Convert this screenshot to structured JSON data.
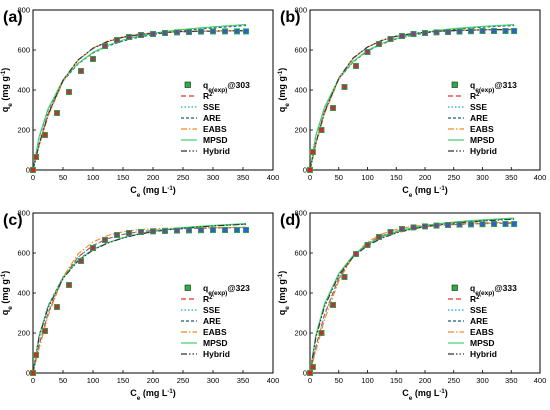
{
  "chart_data": [
    {
      "type": "scatter",
      "panel_label": "(a)",
      "xlim": [
        0,
        400
      ],
      "ylim": [
        0,
        800
      ],
      "xticks": [
        0,
        50,
        100,
        150,
        200,
        250,
        300,
        350,
        400
      ],
      "yticks": [
        0,
        200,
        400,
        600,
        800
      ],
      "xlabel": {
        "main": "C",
        "sub": "e",
        "rest": " (mg L",
        "sup": "-1",
        "end": ")"
      },
      "ylabel": {
        "main": "q",
        "sub": "e",
        "rest": " (mg g",
        "sup": "-1",
        "end": ")"
      },
      "legend_placement": "bottom-right",
      "legend": [
        {
          "main": "q",
          "sub": "e(exp)",
          "rest": "@303"
        },
        {
          "main": "R",
          "sup": "2"
        },
        {
          "main": "SSE"
        },
        {
          "main": "ARE"
        },
        {
          "main": "EABS"
        },
        {
          "main": "MPSD"
        },
        {
          "main": "Hybrid"
        }
      ],
      "experimental": {
        "x": [
          0,
          5,
          20,
          40,
          60,
          80,
          100,
          120,
          140,
          160,
          180,
          200,
          220,
          240,
          260,
          280,
          300,
          320,
          340,
          355
        ],
        "y": [
          0,
          65,
          175,
          285,
          390,
          495,
          555,
          620,
          650,
          665,
          675,
          680,
          685,
          688,
          690,
          692,
          693,
          693,
          693,
          693
        ]
      },
      "fits": {
        "x": [
          0,
          10,
          25,
          50,
          75,
          100,
          125,
          150,
          175,
          200,
          225,
          250,
          275,
          300,
          325,
          355
        ],
        "R2": [
          0,
          128,
          280,
          450,
          550,
          608,
          642,
          663,
          675,
          683,
          688,
          691,
          693,
          694,
          695,
          696
        ],
        "SSE": [
          0,
          122,
          272,
          445,
          548,
          608,
          643,
          664,
          676,
          684,
          689,
          692,
          694,
          695,
          696,
          697
        ],
        "ARE": [
          0,
          160,
          300,
          445,
          530,
          585,
          620,
          645,
          663,
          677,
          688,
          697,
          704,
          710,
          716,
          722
        ],
        "EABS": [
          0,
          118,
          268,
          442,
          548,
          610,
          646,
          667,
          679,
          686,
          690,
          693,
          694,
          695,
          696,
          697
        ],
        "MPSD": [
          0,
          165,
          305,
          450,
          533,
          588,
          624,
          650,
          669,
          683,
          694,
          703,
          710,
          716,
          721,
          728
        ],
        "Hybrid": [
          0,
          125,
          276,
          448,
          550,
          609,
          643,
          664,
          676,
          684,
          689,
          692,
          694,
          695,
          696,
          697
        ]
      }
    },
    {
      "type": "scatter",
      "panel_label": "(b)",
      "xlim": [
        0,
        400
      ],
      "ylim": [
        0,
        800
      ],
      "xticks": [
        0,
        50,
        100,
        150,
        200,
        250,
        300,
        350,
        400
      ],
      "yticks": [
        0,
        200,
        400,
        600,
        800
      ],
      "xlabel": {
        "main": "C",
        "sub": "e",
        "rest": " (mg L",
        "sup": "-1",
        "end": ")"
      },
      "ylabel": {
        "main": "q",
        "sub": "e",
        "rest": " (mg g",
        "sup": "-1",
        "end": ")"
      },
      "legend_placement": "bottom-right",
      "legend": [
        {
          "main": "q",
          "sub": "e(exp)",
          "rest": "@313"
        },
        {
          "main": "R",
          "sup": "2"
        },
        {
          "main": "SSE"
        },
        {
          "main": "ARE"
        },
        {
          "main": "EABS"
        },
        {
          "main": "MPSD"
        },
        {
          "main": "Hybrid"
        }
      ],
      "experimental": {
        "x": [
          0,
          5,
          20,
          40,
          60,
          80,
          100,
          120,
          140,
          160,
          180,
          200,
          220,
          240,
          260,
          280,
          300,
          320,
          340,
          355
        ],
        "y": [
          0,
          90,
          200,
          310,
          415,
          520,
          590,
          630,
          655,
          670,
          680,
          685,
          688,
          690,
          692,
          694,
          695,
          695,
          695,
          695
        ]
      },
      "fits": {
        "x": [
          0,
          10,
          25,
          50,
          75,
          100,
          125,
          150,
          175,
          200,
          225,
          250,
          275,
          300,
          325,
          355
        ],
        "R2": [
          0,
          135,
          290,
          460,
          560,
          615,
          648,
          668,
          680,
          688,
          693,
          696,
          698,
          700,
          701,
          702
        ],
        "SSE": [
          0,
          130,
          285,
          456,
          558,
          614,
          648,
          669,
          681,
          689,
          694,
          697,
          699,
          701,
          702,
          703
        ],
        "ARE": [
          0,
          170,
          310,
          455,
          540,
          595,
          630,
          655,
          672,
          685,
          695,
          703,
          709,
          714,
          718,
          722
        ],
        "EABS": [
          0,
          126,
          280,
          452,
          556,
          614,
          649,
          670,
          682,
          690,
          695,
          698,
          700,
          701,
          702,
          703
        ],
        "MPSD": [
          0,
          172,
          312,
          458,
          543,
          598,
          633,
          658,
          676,
          689,
          699,
          707,
          713,
          718,
          722,
          727
        ],
        "Hybrid": [
          0,
          133,
          288,
          458,
          559,
          615,
          648,
          669,
          681,
          689,
          694,
          697,
          699,
          701,
          702,
          703
        ]
      }
    },
    {
      "type": "scatter",
      "panel_label": "(c)",
      "xlim": [
        0,
        400
      ],
      "ylim": [
        0,
        800
      ],
      "xticks": [
        0,
        50,
        100,
        150,
        200,
        250,
        300,
        350,
        400
      ],
      "yticks": [
        0,
        200,
        400,
        600,
        800
      ],
      "xlabel": {
        "main": "C",
        "sub": "e",
        "rest": " (mg L",
        "sup": "-1",
        "end": ")"
      },
      "ylabel": {
        "main": "q",
        "sub": "e",
        "rest": " (mg g",
        "sup": "-1",
        "end": ")"
      },
      "legend_placement": "bottom-right",
      "legend": [
        {
          "main": "q",
          "sub": "e(exp)",
          "rest": "@323"
        },
        {
          "main": "R",
          "sup": "2"
        },
        {
          "main": "SSE"
        },
        {
          "main": "ARE"
        },
        {
          "main": "EABS"
        },
        {
          "main": "MPSD"
        },
        {
          "main": "Hybrid"
        }
      ],
      "experimental": {
        "x": [
          0,
          5,
          20,
          40,
          60,
          80,
          100,
          120,
          140,
          160,
          180,
          200,
          220,
          240,
          260,
          280,
          300,
          320,
          340,
          355
        ],
        "y": [
          0,
          90,
          210,
          330,
          440,
          560,
          625,
          665,
          690,
          700,
          705,
          708,
          710,
          712,
          713,
          714,
          715,
          715,
          715,
          715
        ]
      },
      "fits": {
        "x": [
          0,
          10,
          25,
          50,
          75,
          100,
          125,
          150,
          175,
          200,
          225,
          250,
          275,
          300,
          325,
          355
        ],
        "R2": [
          0,
          140,
          300,
          475,
          580,
          638,
          672,
          693,
          705,
          713,
          718,
          721,
          723,
          725,
          726,
          727
        ],
        "SSE": [
          0,
          138,
          297,
          472,
          578,
          637,
          672,
          693,
          706,
          714,
          719,
          722,
          724,
          726,
          727,
          728
        ],
        "ARE": [
          0,
          185,
          335,
          480,
          565,
          618,
          652,
          676,
          694,
          707,
          717,
          725,
          731,
          736,
          740,
          745
        ],
        "EABS": [
          0,
          120,
          285,
          480,
          595,
          655,
          688,
          706,
          716,
          721,
          724,
          726,
          727,
          728,
          728,
          729
        ],
        "MPSD": [
          0,
          180,
          330,
          478,
          563,
          617,
          652,
          677,
          695,
          709,
          719,
          727,
          733,
          738,
          742,
          747
        ],
        "Hybrid": [
          0,
          175,
          325,
          473,
          560,
          615,
          650,
          675,
          693,
          706,
          716,
          724,
          730,
          735,
          739,
          744
        ]
      }
    },
    {
      "type": "scatter",
      "panel_label": "(d)",
      "xlim": [
        0,
        400
      ],
      "ylim": [
        0,
        800
      ],
      "xticks": [
        0,
        50,
        100,
        150,
        200,
        250,
        300,
        350,
        400
      ],
      "yticks": [
        0,
        200,
        400,
        600,
        800
      ],
      "xlabel": {
        "main": "C",
        "sub": "e",
        "rest": " (mg L",
        "sup": "-1",
        "end": ")"
      },
      "ylabel": {
        "main": "q",
        "sub": "e",
        "rest": " (mg g",
        "sup": "-1",
        "end": ")"
      },
      "legend_placement": "bottom-right",
      "legend": [
        {
          "main": "q",
          "sub": "e(exp)",
          "rest": "@333"
        },
        {
          "main": "R",
          "sup": "2"
        },
        {
          "main": "SSE"
        },
        {
          "main": "ARE"
        },
        {
          "main": "EABS"
        },
        {
          "main": "MPSD"
        },
        {
          "main": "Hybrid"
        }
      ],
      "experimental": {
        "x": [
          0,
          5,
          20,
          40,
          60,
          80,
          100,
          120,
          140,
          160,
          180,
          200,
          220,
          240,
          260,
          280,
          300,
          320,
          340,
          355
        ],
        "y": [
          0,
          30,
          200,
          340,
          480,
          595,
          640,
          680,
          705,
          720,
          728,
          733,
          737,
          740,
          742,
          743,
          744,
          745,
          745,
          745
        ]
      },
      "fits": {
        "x": [
          0,
          10,
          25,
          50,
          75,
          100,
          125,
          150,
          175,
          200,
          225,
          250,
          275,
          300,
          325,
          355
        ],
        "R2": [
          0,
          130,
          290,
          475,
          585,
          648,
          686,
          709,
          723,
          732,
          738,
          742,
          745,
          747,
          748,
          749
        ],
        "SSE": [
          0,
          128,
          287,
          472,
          583,
          647,
          686,
          709,
          724,
          733,
          739,
          743,
          746,
          748,
          749,
          750
        ],
        "ARE": [
          0,
          185,
          340,
          495,
          585,
          641,
          678,
          703,
          721,
          734,
          744,
          752,
          758,
          763,
          767,
          772
        ],
        "EABS": [
          0,
          110,
          265,
          460,
          585,
          655,
          695,
          718,
          732,
          740,
          745,
          748,
          750,
          751,
          752,
          752
        ],
        "MPSD": [
          0,
          190,
          345,
          498,
          588,
          644,
          681,
          706,
          724,
          737,
          747,
          755,
          761,
          766,
          770,
          775
        ],
        "Hybrid": [
          0,
          175,
          330,
          488,
          580,
          637,
          674,
          700,
          718,
          731,
          741,
          749,
          755,
          760,
          764,
          769
        ]
      }
    }
  ],
  "styles": {
    "marker_fill": "#27B13F",
    "marker_stroke": "#1a1a1a",
    "series": {
      "R2": {
        "color": "#e8312a",
        "dash": "5,3"
      },
      "SSE": {
        "color": "#1fa3d9",
        "dash": "1.5,2"
      },
      "ARE": {
        "color": "#1f5c7a",
        "dash": "3,2"
      },
      "EABS": {
        "color": "#f28a1e",
        "dash": "6,2,1.5,2"
      },
      "MPSD": {
        "color": "#3ed26c",
        "dash": ""
      },
      "Hybrid": {
        "color": "#333333",
        "dash": "6,2,1.5,2,1.5,2"
      }
    },
    "marker_gradient": [
      "#d62728",
      "#2c5fd6"
    ]
  }
}
